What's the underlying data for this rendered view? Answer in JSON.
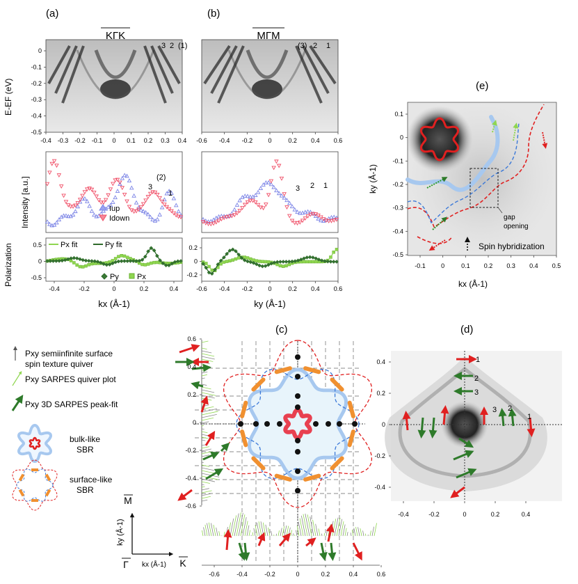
{
  "panels": {
    "a": {
      "letter": "(a)",
      "path_label": "KΓK",
      "band_labels": [
        "3",
        "2",
        "(1)"
      ],
      "y_axis_label": "E-EF (eV)",
      "y_ticks": [
        "0",
        "-0.1",
        "-0.2",
        "-0.3",
        "-0.4",
        "-0.5"
      ],
      "x_ticks_top": [
        "-0.4",
        "-0.3",
        "-0.2",
        "-0.1",
        "0",
        "0.1",
        "0.2",
        "0.3",
        "0.4"
      ],
      "intensity_label": "Intensity [a.u.]",
      "intensity_band_labels": [
        "(2)",
        "3",
        "1"
      ],
      "legend_up": "Iup",
      "legend_down": "Idown",
      "polarization_label": "Polarization",
      "pol_y_ticks": [
        "0.5",
        "0",
        "-0.5"
      ],
      "legend_px_fit": "Px fit",
      "legend_py_fit": "Py fit",
      "legend_py": "Py",
      "legend_px": "Px",
      "x_ticks_bottom": [
        "-0.4",
        "-0.2",
        "0",
        "0.2",
        "0.4"
      ],
      "x_axis_label": "kx (Å-1)"
    },
    "b": {
      "letter": "(b)",
      "path_label": "MΓM",
      "band_labels": [
        "(3)",
        "2",
        "1"
      ],
      "x_ticks_top": [
        "-0.6",
        "-0.4",
        "-0.2",
        "0",
        "0.2",
        "0.4",
        "0.6"
      ],
      "intensity_band_labels": [
        "3",
        "2",
        "1"
      ],
      "pol_y_ticks": [
        "0.2",
        "0",
        "-0.2"
      ],
      "x_ticks_bottom": [
        "-0.6",
        "-0.4",
        "-0.2",
        "0",
        "0.2",
        "0.4",
        "0.6"
      ],
      "x_axis_label": "ky (Å-1)"
    },
    "c": {
      "letter": "(c)",
      "y_ticks": [
        "0.6",
        "0.4",
        "0.2",
        "0",
        "-0.2",
        "-0.4",
        "-0.6"
      ],
      "x_ticks": [
        "-0.6",
        "-0.4",
        "-0.2",
        "0",
        "0.2",
        "0.4",
        "0.6"
      ],
      "axis_ky": "ky (Å-1)",
      "axis_kx": "kx (Å-1)",
      "point_M": "M",
      "point_Gamma": "Γ",
      "point_K": "K"
    },
    "d": {
      "letter": "(d)",
      "y_ticks": [
        "0.4",
        "0.2",
        "0",
        "-0.2",
        "-0.4"
      ],
      "x_ticks": [
        "-0.4",
        "-0.2",
        "0",
        "0.2",
        "0.4"
      ],
      "band_labels_top": [
        "1",
        "2",
        "3"
      ],
      "band_labels_right": [
        "3",
        "2",
        "1"
      ]
    },
    "e": {
      "letter": "(e)",
      "y_ticks": [
        "0.1",
        "0",
        "-0.1",
        "-0.2",
        "-0.3",
        "-0.4",
        "-0.5"
      ],
      "x_ticks": [
        "-0.1",
        "0",
        "0.1",
        "0.2",
        "0.3",
        "0.4",
        "0.5"
      ],
      "y_axis_label": "ky (Å-1)",
      "x_axis_label": "kx (Å-1)",
      "gap_label_1": "gap",
      "gap_label_2": "opening",
      "spin_hyb_label": "Spin hybridization"
    }
  },
  "legend": {
    "items": [
      "Pxy semiinfinite surface",
      "spin texture quiver",
      "Pxy SARPES quiver plot",
      "Pxy 3D SARPES peak-fit",
      "bulk-like",
      "SBR",
      "surface-like",
      "SBR"
    ]
  },
  "colors": {
    "blue_data": "#7b84e6",
    "red_data": "#f05068",
    "light_green": "#8fd650",
    "dark_green": "#2e6a2a",
    "bulk_blue": "#a7c8ef",
    "orange": "#f09030",
    "red": "#e02020",
    "dashed_blue": "#3a78d8"
  }
}
